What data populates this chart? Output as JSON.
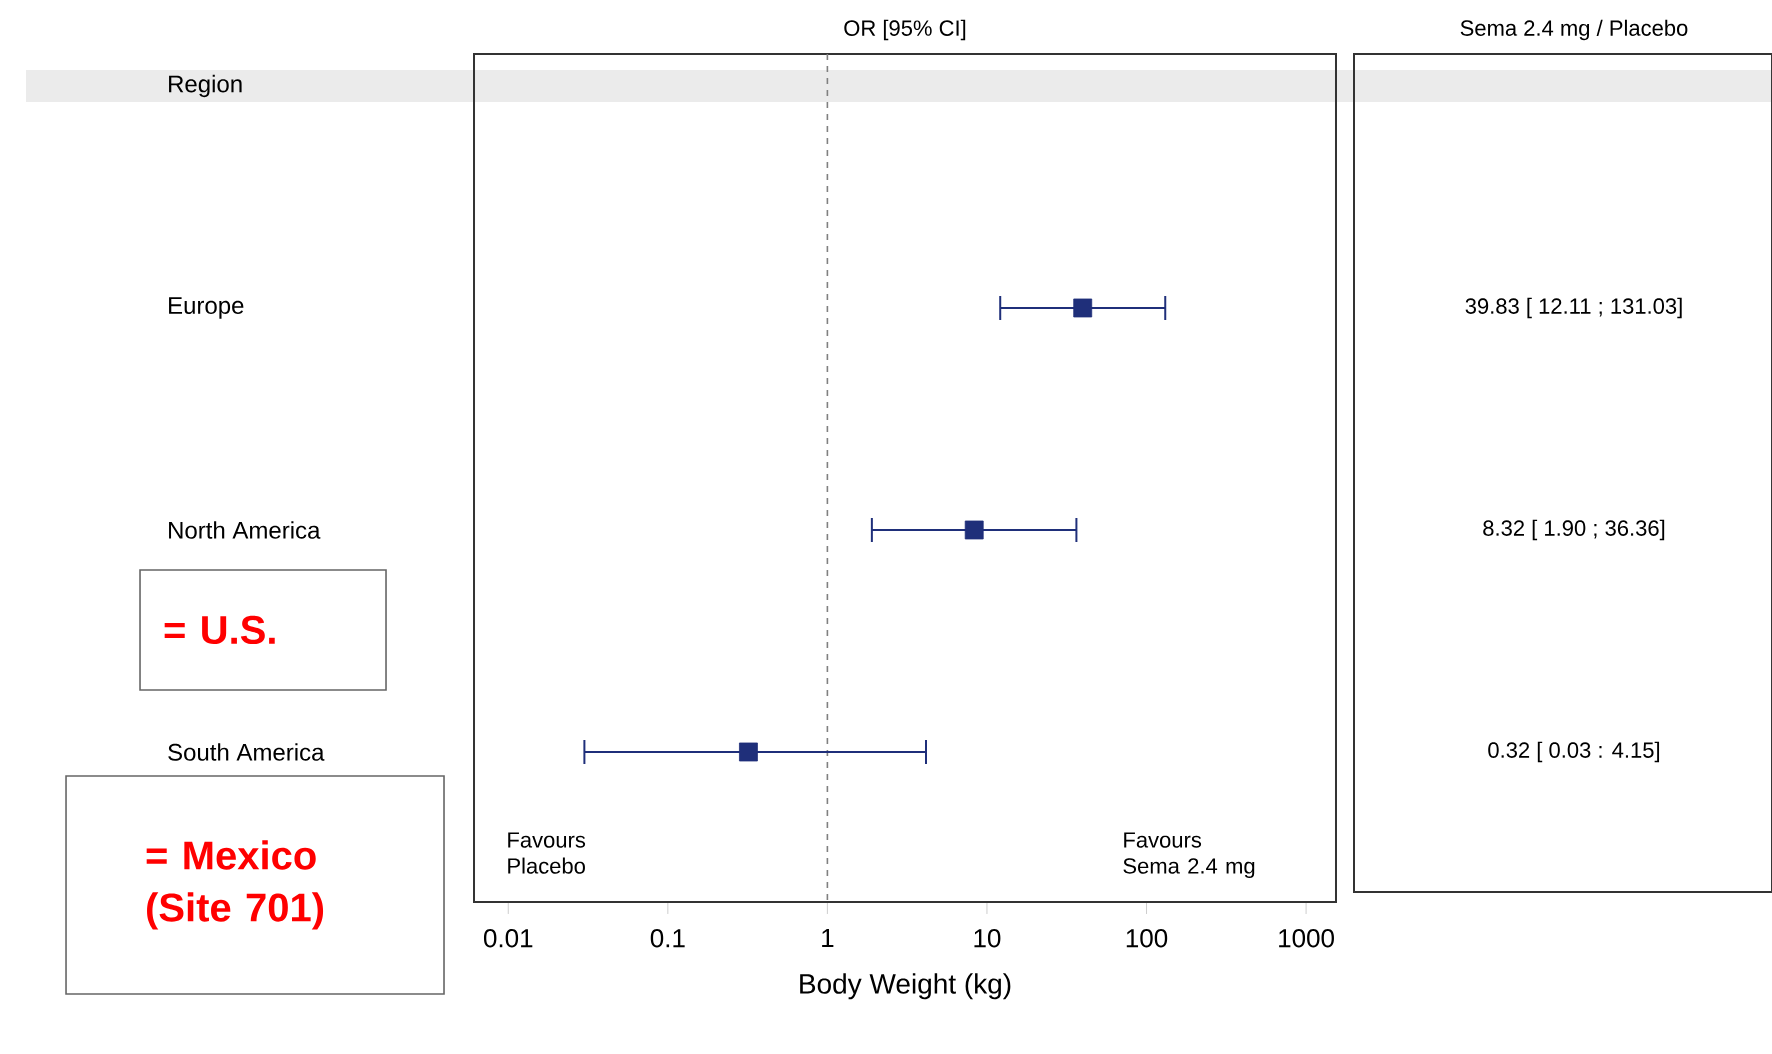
{
  "chart_data": {
    "type": "scatter",
    "orientation": "horizontal",
    "title": "OR [95% CI]",
    "xlabel": "Body Weight (kg)",
    "categories": [
      "Europe",
      "North America",
      "South America"
    ],
    "values": [
      39.83,
      8.32,
      0.32
    ],
    "errors": [
      [
        12.11,
        131.03
      ],
      [
        1.9,
        36.36
      ],
      [
        0.03,
        4.15
      ]
    ],
    "color": "#1f2f7a",
    "marker": "square",
    "log": "x",
    "xlim": [
      0.0061,
      1540
    ],
    "xticks": [
      0.01,
      0.1,
      1,
      10,
      100,
      1000
    ],
    "ref_lines": [
      {
        "axis": "x",
        "value": 1,
        "color": "#808080",
        "line_style": "dashed"
      }
    ],
    "annotations": [
      "Sema 2.4 mg / Placebo",
      "Favours Placebo",
      "Favours Sema 2.4 mg",
      "= U.S.",
      "= Mexico (Site 701)",
      "Region",
      "39.83 [ 12.11 ; 131.03]",
      "8.32 [  1.90 ;  36.36]",
      "0.32 [  0.03 :   4.15]"
    ]
  }
}
